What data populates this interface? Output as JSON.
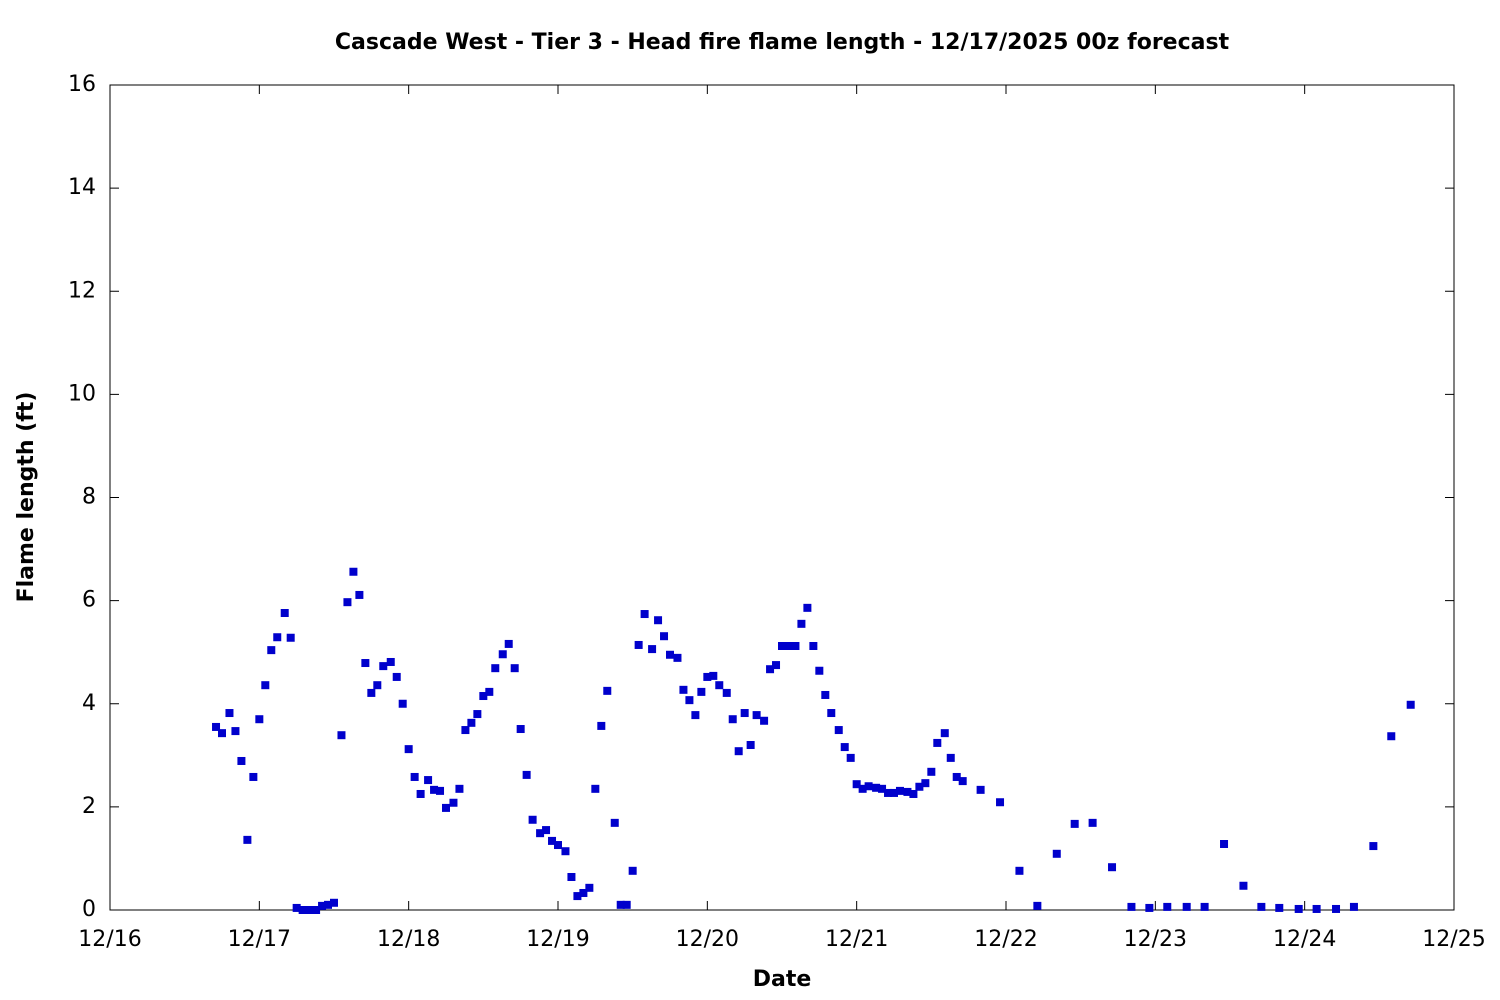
{
  "chart_data": {
    "type": "scatter",
    "title": "Cascade West - Tier 3 - Head fire flame length - 12/17/2025 00z forecast",
    "xlabel": "Date",
    "ylabel": "Flame length (ft)",
    "color": "#0000cc",
    "xlim": [
      16,
      25
    ],
    "xticks": [
      {
        "value": 16,
        "label": "12/16"
      },
      {
        "value": 17,
        "label": "12/17"
      },
      {
        "value": 18,
        "label": "12/18"
      },
      {
        "value": 19,
        "label": "12/19"
      },
      {
        "value": 20,
        "label": "12/20"
      },
      {
        "value": 21,
        "label": "12/21"
      },
      {
        "value": 22,
        "label": "12/22"
      },
      {
        "value": 23,
        "label": "12/23"
      },
      {
        "value": 24,
        "label": "12/24"
      },
      {
        "value": 25,
        "label": "12/25"
      }
    ],
    "ylim": [
      0,
      16
    ],
    "yticks": [
      0,
      2,
      4,
      6,
      8,
      10,
      12,
      14,
      16
    ],
    "x": [
      16.71,
      16.75,
      16.8,
      16.84,
      16.88,
      16.92,
      16.96,
      17.0,
      17.04,
      17.08,
      17.12,
      17.17,
      17.21,
      17.25,
      17.29,
      17.33,
      17.38,
      17.42,
      17.46,
      17.5,
      17.55,
      17.59,
      17.63,
      17.67,
      17.71,
      17.75,
      17.79,
      17.83,
      17.88,
      17.92,
      17.96,
      18.0,
      18.04,
      18.08,
      18.13,
      18.17,
      18.21,
      18.25,
      18.3,
      18.34,
      18.38,
      18.42,
      18.46,
      18.5,
      18.54,
      18.58,
      18.63,
      18.67,
      18.71,
      18.75,
      18.79,
      18.83,
      18.88,
      18.92,
      18.96,
      19.0,
      19.05,
      19.09,
      19.13,
      19.17,
      19.21,
      19.25,
      19.29,
      19.33,
      19.38,
      19.42,
      19.46,
      19.5,
      19.54,
      19.58,
      19.63,
      19.67,
      19.71,
      19.75,
      19.8,
      19.84,
      19.88,
      19.92,
      19.96,
      20.0,
      20.04,
      20.08,
      20.13,
      20.17,
      20.21,
      20.25,
      20.29,
      20.33,
      20.38,
      20.42,
      20.46,
      20.5,
      20.54,
      20.59,
      20.63,
      20.67,
      20.71,
      20.75,
      20.79,
      20.83,
      20.88,
      20.92,
      20.96,
      21.0,
      21.04,
      21.08,
      21.13,
      21.17,
      21.21,
      21.25,
      21.29,
      21.34,
      21.38,
      21.42,
      21.46,
      21.5,
      21.54,
      21.59,
      21.63,
      21.67,
      21.71,
      21.83,
      21.96,
      22.09,
      22.21,
      22.34,
      22.46,
      22.58,
      22.71,
      22.84,
      22.96,
      23.08,
      23.21,
      23.33,
      23.46,
      23.59,
      23.71,
      23.83,
      23.96,
      24.08,
      24.21,
      24.33,
      24.46,
      24.58,
      24.71
    ],
    "values": [
      3.55,
      3.43,
      3.82,
      3.47,
      2.89,
      1.36,
      2.58,
      3.7,
      4.36,
      5.04,
      5.29,
      5.76,
      5.28,
      0.04,
      0,
      0,
      0,
      0.08,
      0.1,
      0.14,
      3.39,
      5.97,
      6.56,
      6.11,
      4.79,
      4.21,
      4.36,
      4.73,
      4.81,
      4.52,
      4.0,
      3.12,
      2.58,
      2.25,
      2.52,
      2.33,
      2.31,
      1.98,
      2.08,
      2.35,
      3.49,
      3.63,
      3.8,
      4.15,
      4.23,
      4.69,
      4.96,
      5.16,
      4.69,
      3.51,
      2.62,
      1.75,
      1.49,
      1.55,
      1.34,
      1.26,
      1.14,
      0.64,
      0.27,
      0.33,
      0.43,
      2.35,
      3.57,
      4.25,
      1.69,
      0.1,
      0.1,
      0.76,
      5.14,
      5.74,
      5.06,
      5.62,
      5.31,
      4.95,
      4.89,
      4.27,
      4.07,
      3.78,
      4.23,
      4.52,
      4.54,
      4.36,
      4.21,
      3.7,
      3.08,
      3.82,
      3.2,
      3.78,
      3.67,
      4.67,
      4.75,
      5.12,
      5.12,
      5.12,
      5.55,
      5.86,
      5.12,
      4.64,
      4.17,
      3.82,
      3.49,
      3.16,
      2.95,
      2.44,
      2.35,
      2.4,
      2.37,
      2.35,
      2.27,
      2.27,
      2.31,
      2.29,
      2.25,
      2.39,
      2.46,
      2.68,
      3.24,
      3.43,
      2.95,
      2.58,
      2.5,
      2.33,
      2.09,
      0.76,
      0.08,
      1.09,
      1.67,
      1.69,
      0.83,
      0.06,
      0.04,
      0.06,
      0.06,
      0.06,
      1.28,
      0.47,
      0.06,
      0.04,
      0.02,
      0.02,
      0.02,
      0.06,
      1.24,
      3.37,
      3.98
    ]
  }
}
